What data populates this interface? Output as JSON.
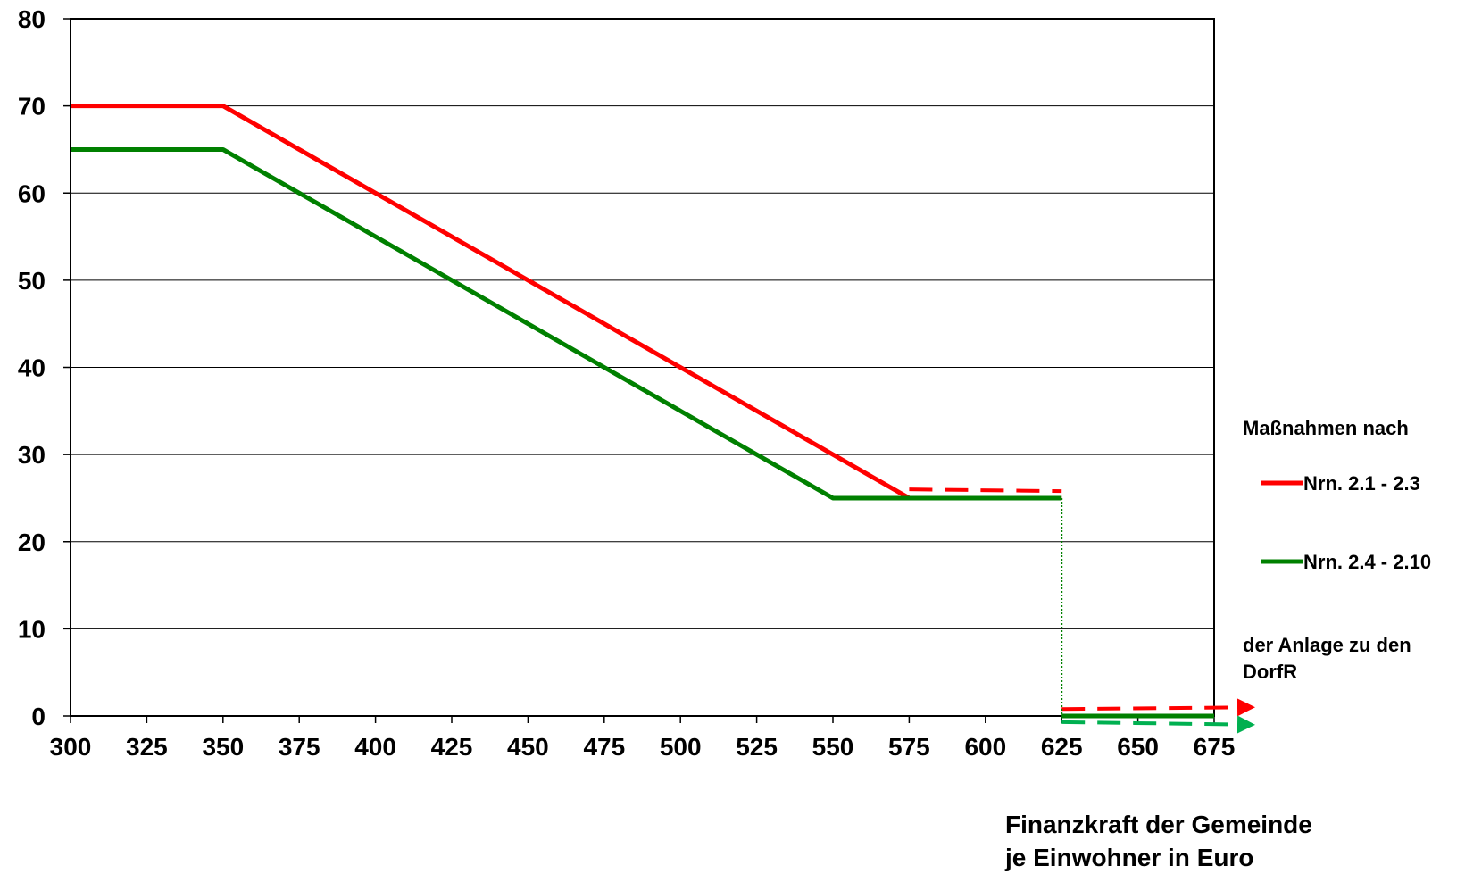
{
  "chart_data": {
    "type": "line",
    "title": "",
    "xlabel": [
      "Finanzkraft der Gemeinde",
      "je Einwohner in Euro"
    ],
    "ylabel": "",
    "xlim": [
      300,
      675
    ],
    "ylim": [
      0,
      80
    ],
    "x_ticks": [
      300,
      325,
      350,
      375,
      400,
      425,
      450,
      475,
      500,
      525,
      550,
      575,
      600,
      625,
      650,
      675
    ],
    "y_ticks": [
      0,
      10,
      20,
      30,
      40,
      50,
      60,
      70,
      80
    ],
    "grid": "horizontal",
    "legend_position": "right",
    "legend": {
      "heading": "Maßnahmen nach",
      "footer": [
        "der Anlage zu den",
        "DorfR"
      ]
    },
    "series": [
      {
        "name": "Nrn. 2.1 - 2.3",
        "color": "#ff0000",
        "points": [
          [
            300,
            70
          ],
          [
            350,
            70
          ],
          [
            575,
            25
          ],
          [
            625,
            25
          ]
        ],
        "dashed_segments": [
          {
            "points": [
              [
                575,
                26
              ],
              [
                625,
                25.8
              ]
            ]
          },
          {
            "points": [
              [
                625,
                0.8
              ],
              [
                675,
                1
              ]
            ],
            "arrow": true
          }
        ]
      },
      {
        "name": "Nrn. 2.4 - 2.10",
        "color": "#008000",
        "points": [
          [
            300,
            65
          ],
          [
            350,
            65
          ],
          [
            550,
            25
          ],
          [
            625,
            25
          ]
        ],
        "drop_line": [
          [
            625,
            25
          ],
          [
            625,
            0
          ]
        ],
        "after_points": [
          [
            625,
            0
          ],
          [
            675,
            0
          ]
        ],
        "dashed_segments": [
          {
            "points": [
              [
                625,
                -0.7
              ],
              [
                675,
                -1
              ]
            ],
            "arrow": true,
            "color": "#00b050"
          }
        ]
      }
    ]
  }
}
